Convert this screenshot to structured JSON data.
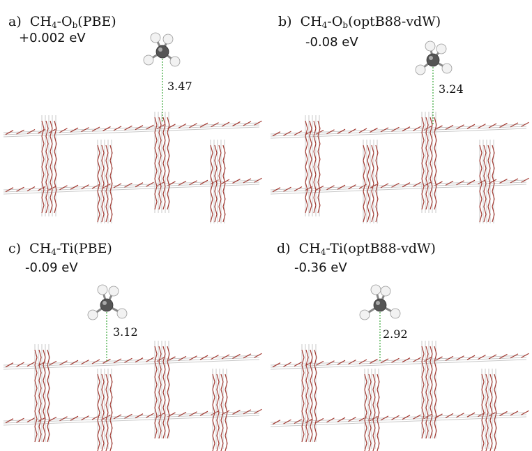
{
  "panels": [
    {
      "letter": "a)",
      "molecule": "CH",
      "sub4": "4",
      "dash": "-O",
      "subb": "b",
      "method": "(PBE)",
      "energy": "+0.002 eV",
      "distance": "3.47"
    },
    {
      "letter": "b)",
      "molecule": "CH",
      "sub4": "4",
      "dash": "-O",
      "subb": "b",
      "method": "(optB88-vdW)",
      "energy": "-0.08 eV",
      "distance": "3.24"
    },
    {
      "letter": "c)",
      "molecule": "CH",
      "sub4": "4",
      "dash": "-Ti",
      "subb": "",
      "method": "(PBE)",
      "energy": "-0.09 eV",
      "distance": "3.12"
    },
    {
      "letter": "d)",
      "molecule": "CH",
      "sub4": "4",
      "dash": "-Ti",
      "subb": "",
      "method": "(optB88-vdW)",
      "energy": "-0.36 eV",
      "distance": "2.92"
    }
  ],
  "colors": {
    "oxygen_bond": "#a33a32",
    "titanium_bond": "#c9c9c9",
    "carbon": "#555555",
    "hydrogen": "#f2f2f2",
    "distance_line": "#3aa63a"
  }
}
